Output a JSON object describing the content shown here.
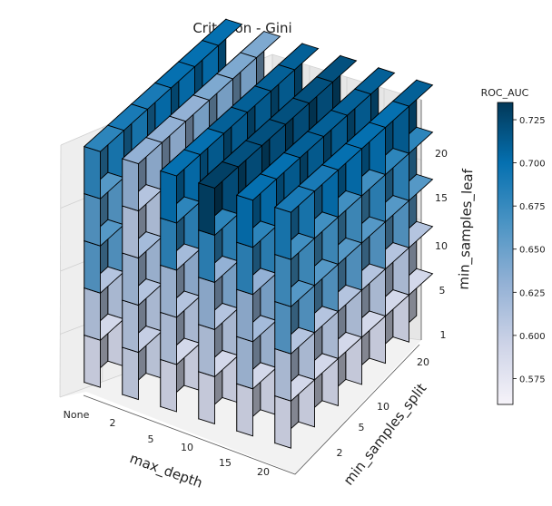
{
  "chart_data": {
    "type": "3d-voxel",
    "title": "Criterion - Gini",
    "xlabel": "max_depth",
    "ylabel": "min_samples_split",
    "zlabel": "min_samples_leaf",
    "x_ticks": [
      "None",
      "2",
      "5",
      "10",
      "15",
      "20"
    ],
    "y_ticks": [
      "2",
      "5",
      "10",
      "20"
    ],
    "z_ticks": [
      "1",
      "5",
      "10",
      "15",
      "20"
    ],
    "colorbar": {
      "label": "ROC_AUC",
      "min": 0.56,
      "max": 0.735,
      "ticks": [
        "0.575",
        "0.600",
        "0.625",
        "0.650",
        "0.675",
        "0.700",
        "0.725"
      ]
    },
    "grid": true,
    "values": [
      [
        [
          0.59,
          0.61,
          0.66,
          0.66,
          0.68
        ],
        [
          0.59,
          0.61,
          0.66,
          0.66,
          0.69
        ],
        [
          0.59,
          0.61,
          0.66,
          0.67,
          0.69
        ],
        [
          0.59,
          0.61,
          0.66,
          0.67,
          0.7
        ],
        [
          0.59,
          0.61,
          0.66,
          0.67,
          0.7
        ],
        [
          0.59,
          0.61,
          0.66,
          0.67,
          0.7
        ]
      ],
      [
        [
          0.6,
          0.61,
          0.62,
          0.61,
          0.63
        ],
        [
          0.6,
          0.61,
          0.62,
          0.61,
          0.63
        ],
        [
          0.6,
          0.61,
          0.62,
          0.62,
          0.63
        ],
        [
          0.6,
          0.61,
          0.62,
          0.62,
          0.64
        ],
        [
          0.6,
          0.61,
          0.62,
          0.62,
          0.64
        ],
        [
          0.6,
          0.61,
          0.62,
          0.62,
          0.64
        ]
      ],
      [
        [
          0.59,
          0.61,
          0.62,
          0.68,
          0.7
        ],
        [
          0.59,
          0.61,
          0.63,
          0.68,
          0.7
        ],
        [
          0.59,
          0.61,
          0.63,
          0.69,
          0.71
        ],
        [
          0.59,
          0.61,
          0.64,
          0.69,
          0.71
        ],
        [
          0.59,
          0.61,
          0.64,
          0.69,
          0.71
        ],
        [
          0.59,
          0.61,
          0.64,
          0.69,
          0.71
        ]
      ],
      [
        [
          0.59,
          0.61,
          0.63,
          0.68,
          0.73
        ],
        [
          0.59,
          0.61,
          0.64,
          0.68,
          0.72
        ],
        [
          0.59,
          0.61,
          0.64,
          0.68,
          0.72
        ],
        [
          0.59,
          0.61,
          0.65,
          0.69,
          0.72
        ],
        [
          0.59,
          0.61,
          0.65,
          0.69,
          0.72
        ],
        [
          0.59,
          0.61,
          0.65,
          0.69,
          0.72
        ]
      ],
      [
        [
          0.59,
          0.62,
          0.63,
          0.68,
          0.7
        ],
        [
          0.59,
          0.62,
          0.64,
          0.68,
          0.7
        ],
        [
          0.59,
          0.62,
          0.64,
          0.68,
          0.71
        ],
        [
          0.59,
          0.62,
          0.64,
          0.69,
          0.71
        ],
        [
          0.59,
          0.62,
          0.65,
          0.69,
          0.71
        ],
        [
          0.59,
          0.62,
          0.65,
          0.69,
          0.71
        ]
      ],
      [
        [
          0.59,
          0.61,
          0.66,
          0.67,
          0.69
        ],
        [
          0.59,
          0.61,
          0.66,
          0.67,
          0.69
        ],
        [
          0.59,
          0.61,
          0.66,
          0.67,
          0.7
        ],
        [
          0.59,
          0.61,
          0.66,
          0.67,
          0.7
        ],
        [
          0.59,
          0.61,
          0.66,
          0.68,
          0.7
        ],
        [
          0.59,
          0.61,
          0.66,
          0.68,
          0.71
        ]
      ]
    ]
  }
}
